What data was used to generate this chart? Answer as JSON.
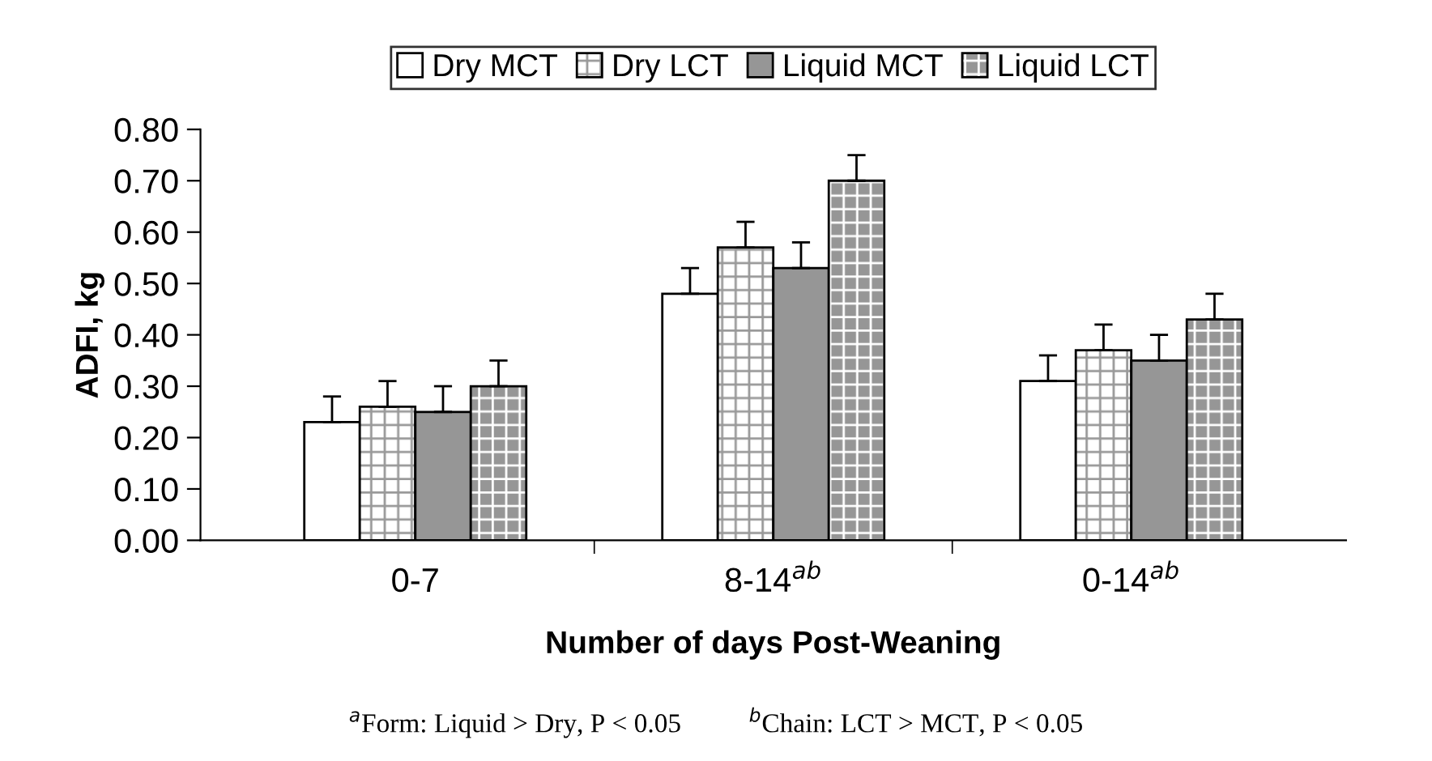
{
  "chart_data": {
    "type": "bar",
    "categories": [
      "0-7",
      "8-14$^{ab}$",
      "0-14$^{ab}$"
    ],
    "xlabel": "Number of days Post-Weaning",
    "ylabel": "ADFI, kg",
    "ylim": [
      0,
      0.8
    ],
    "yticks": [
      {
        "value": 0,
        "label": "0.00"
      },
      {
        "value": 0.1,
        "label": "0.10"
      },
      {
        "value": 0.2,
        "label": "0.20"
      },
      {
        "value": 0.3,
        "label": "0.30"
      },
      {
        "value": 0.4,
        "label": "0.40"
      },
      {
        "value": 0.5,
        "label": "0.50"
      },
      {
        "value": 0.6,
        "label": "0.60"
      },
      {
        "value": 0.7,
        "label": "0.70"
      },
      {
        "value": 0.8,
        "label": "0.80"
      }
    ],
    "series": [
      {
        "name": "Dry MCT",
        "color": "#ffffff",
        "values": [
          0.23,
          0.48,
          0.31
        ],
        "errors": [
          0.05,
          0.05,
          0.05
        ]
      },
      {
        "name": "Dry LCT",
        "color": "#ffffff",
        "values": [
          0.26,
          0.57,
          0.37
        ],
        "errors": [
          0.05,
          0.05,
          0.05
        ]
      },
      {
        "name": "Liquid MCT",
        "color": "#969696",
        "values": [
          0.25,
          0.53,
          0.35
        ],
        "errors": [
          0.05,
          0.05,
          0.05
        ]
      },
      {
        "name": "Liquid LCT",
        "color": "#969696",
        "values": [
          0.3,
          0.7,
          0.43
        ],
        "errors": [
          0.05,
          0.05,
          0.05
        ]
      }
    ],
    "legend": "top",
    "grid": false,
    "annotations": [
      "$^{a}$Form: Liquid > Dry, P < 0.05          $^{b}$Chain: LCT > MCT, P < 0.05"
    ]
  }
}
